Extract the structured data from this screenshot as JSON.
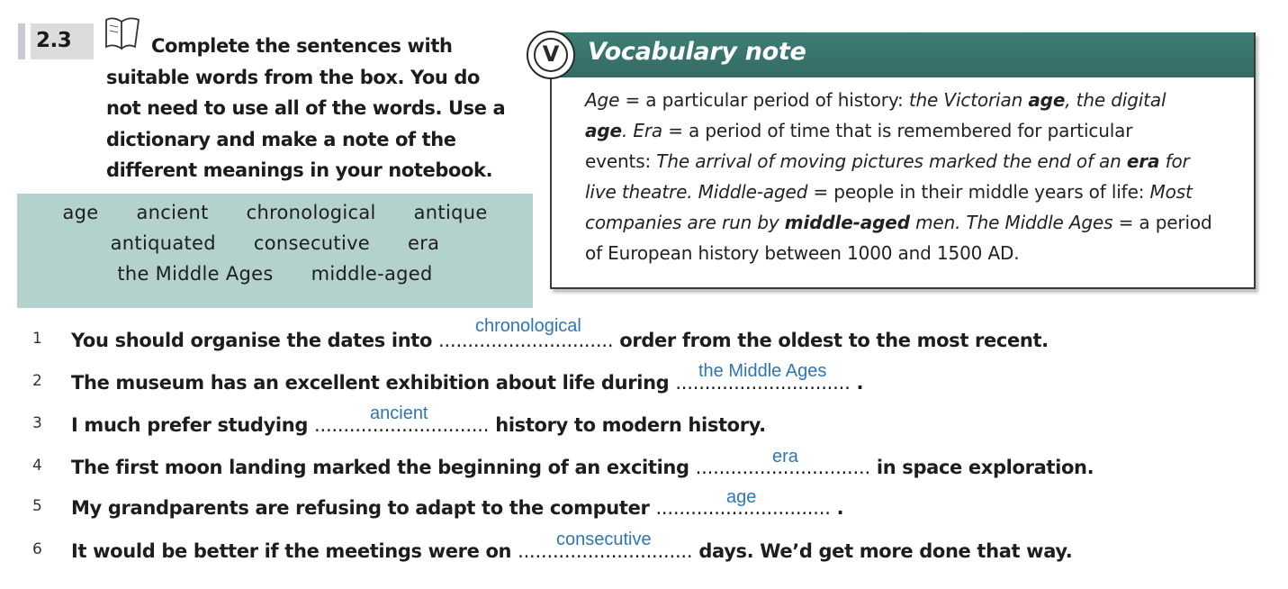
{
  "exercise": {
    "number": "2.3",
    "instruction": "Complete the sentences with suitable words from the box. You do not need to use all of the words. Use a dictionary and make a note of the different meanings in your notebook.",
    "word_box": {
      "line1": [
        "age",
        "ancient",
        "chronological",
        "antique"
      ],
      "line2": [
        "antiquated",
        "consecutive",
        "era"
      ],
      "line3": [
        "the Middle Ages",
        "middle-aged"
      ]
    }
  },
  "vocab_note": {
    "icon_letter": "V",
    "title": "Vocabulary note",
    "lines": [
      [
        "Age",
        " = a particular period of history: ",
        "the Victorian ",
        "age",
        ", the digital"
      ],
      [
        "age",
        ". ",
        "Era",
        " = a period of time that is remembered for particular"
      ],
      [
        "events: ",
        "The arrival of moving pictures marked the end of an ",
        "era",
        " for"
      ],
      [
        "live theatre. Middle-aged",
        " = people in their middle years of life: ",
        "Most"
      ],
      [
        "companies are run by ",
        "middle-aged",
        " men. The Middle Ages",
        " = a period"
      ],
      [
        "of European history between 1000 and 1500 AD."
      ]
    ]
  },
  "sentences": [
    {
      "num": "1",
      "before": "You should organise the dates into ",
      "dots": "..............................",
      "after": " order from the oldest to the most recent.",
      "answer": "chronological"
    },
    {
      "num": "2",
      "before": "The museum has an excellent exhibition about life during ",
      "dots": "..............................",
      "after": " .",
      "answer": "the Middle Ages"
    },
    {
      "num": "3",
      "before": "I much prefer studying ",
      "dots": "..............................",
      "after": " history to modern history.",
      "answer": "ancient"
    },
    {
      "num": "4",
      "before": "The first moon landing marked the beginning of an exciting ",
      "dots": "..............................",
      "after": " in space exploration.",
      "answer": "era"
    },
    {
      "num": "5",
      "before": "My grandparents are refusing to adapt to the computer ",
      "dots": "..............................",
      "after": " .",
      "answer": "age"
    },
    {
      "num": "6",
      "before": "It would be better if the meetings were on ",
      "dots": "..............................",
      "after": " days. We’d get more done that way.",
      "answer": "consecutive"
    }
  ],
  "colors": {
    "box_fill": "#b3d2cd",
    "note_header": "#3a766f",
    "answer_text": "#2e75b6"
  }
}
